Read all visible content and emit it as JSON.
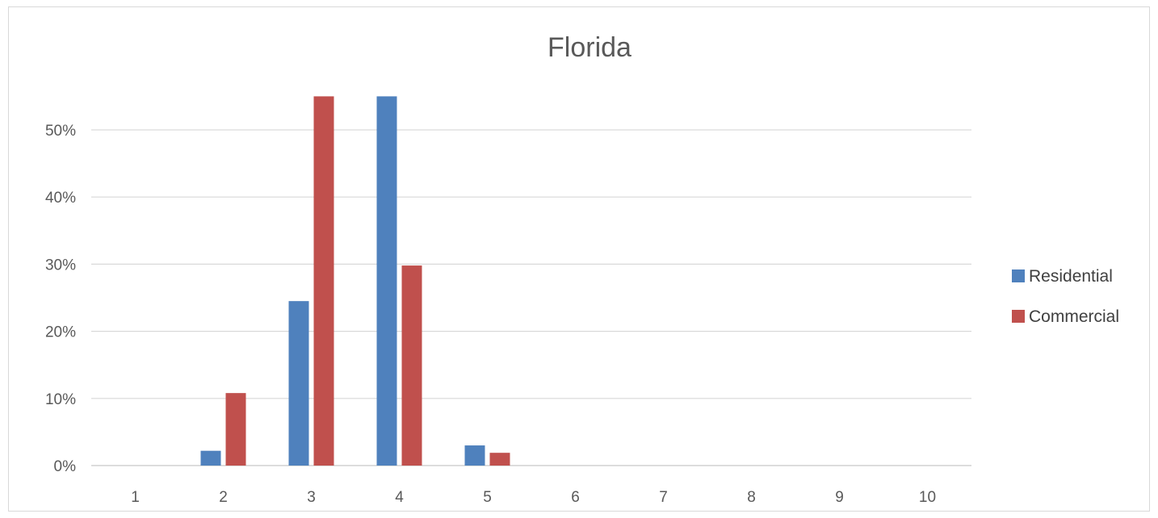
{
  "chart_data": {
    "type": "bar",
    "title": "Florida",
    "xlabel": "",
    "ylabel": "",
    "categories": [
      "1",
      "2",
      "3",
      "4",
      "5",
      "6",
      "7",
      "8",
      "9",
      "10"
    ],
    "series": [
      {
        "name": "Residential",
        "color": "#4f81bd",
        "values": [
          0,
          2.2,
          24.5,
          55,
          3.0,
          0,
          0,
          0,
          0,
          0
        ]
      },
      {
        "name": "Commercial",
        "color": "#c0504d",
        "values": [
          0,
          10.8,
          55,
          29.8,
          1.9,
          0,
          0,
          0,
          0,
          0
        ]
      }
    ],
    "yticks": [
      "0%",
      "10%",
      "20%",
      "30%",
      "40%",
      "50%"
    ],
    "ylim": [
      0,
      55
    ],
    "grid": true,
    "legend": "right"
  }
}
